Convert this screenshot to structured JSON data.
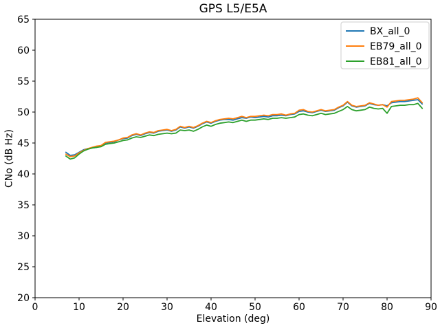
{
  "chart_data": {
    "type": "line",
    "title": "GPS L5/E5A",
    "xlabel": "Elevation (deg)",
    "ylabel": "CNo (dB Hz)",
    "xlim": [
      0,
      90
    ],
    "ylim": [
      20,
      65
    ],
    "xticks": [
      0,
      10,
      20,
      30,
      40,
      50,
      60,
      70,
      80,
      90
    ],
    "yticks": [
      20,
      25,
      30,
      35,
      40,
      45,
      50,
      55,
      60,
      65
    ],
    "grid": false,
    "legend_position": "upper right",
    "x": [
      7,
      8,
      9,
      10,
      11,
      12,
      13,
      14,
      15,
      16,
      17,
      18,
      19,
      20,
      21,
      22,
      23,
      24,
      25,
      26,
      27,
      28,
      29,
      30,
      31,
      32,
      33,
      34,
      35,
      36,
      37,
      38,
      39,
      40,
      41,
      42,
      43,
      44,
      45,
      46,
      47,
      48,
      49,
      50,
      51,
      52,
      53,
      54,
      55,
      56,
      57,
      58,
      59,
      60,
      61,
      62,
      63,
      64,
      65,
      66,
      67,
      68,
      69,
      70,
      71,
      72,
      73,
      74,
      75,
      76,
      77,
      78,
      79,
      80,
      81,
      82,
      83,
      84,
      85,
      86,
      87,
      88
    ],
    "series": [
      {
        "name": "BX_all_0",
        "color": "#1f77b4",
        "values": [
          43.5,
          43.0,
          43.1,
          43.5,
          43.9,
          44.1,
          44.2,
          44.3,
          44.5,
          45.0,
          45.1,
          45.2,
          45.5,
          45.7,
          45.8,
          46.2,
          46.4,
          46.2,
          46.5,
          46.7,
          46.6,
          46.9,
          47.0,
          47.1,
          46.9,
          47.1,
          47.6,
          47.4,
          47.6,
          47.4,
          47.7,
          48.1,
          48.4,
          48.2,
          48.5,
          48.7,
          48.8,
          48.8,
          48.7,
          48.9,
          49.1,
          49.0,
          49.2,
          49.1,
          49.2,
          49.3,
          49.2,
          49.4,
          49.4,
          49.5,
          49.4,
          49.6,
          49.7,
          50.1,
          50.2,
          50.0,
          49.9,
          50.1,
          50.3,
          50.1,
          50.2,
          50.3,
          50.7,
          51.0,
          51.6,
          51.0,
          50.8,
          50.9,
          51.0,
          51.4,
          51.2,
          51.1,
          51.2,
          51.0,
          51.5,
          51.6,
          51.7,
          51.7,
          51.8,
          51.9,
          52.0,
          51.3
        ]
      },
      {
        "name": "EB79_all_0",
        "color": "#ff7f0e",
        "values": [
          43.2,
          42.8,
          42.9,
          43.4,
          43.8,
          44.1,
          44.3,
          44.5,
          44.6,
          45.1,
          45.2,
          45.3,
          45.5,
          45.8,
          45.9,
          46.3,
          46.5,
          46.3,
          46.6,
          46.8,
          46.7,
          47.0,
          47.1,
          47.2,
          47.0,
          47.2,
          47.7,
          47.5,
          47.7,
          47.5,
          47.8,
          48.2,
          48.5,
          48.3,
          48.6,
          48.8,
          48.9,
          49.0,
          48.9,
          49.1,
          49.3,
          49.1,
          49.3,
          49.3,
          49.4,
          49.5,
          49.4,
          49.6,
          49.6,
          49.7,
          49.5,
          49.7,
          49.8,
          50.3,
          50.4,
          50.1,
          50.0,
          50.2,
          50.4,
          50.2,
          50.3,
          50.4,
          50.8,
          51.1,
          51.7,
          51.1,
          50.9,
          51.0,
          51.1,
          51.5,
          51.3,
          51.1,
          51.2,
          50.8,
          51.7,
          51.8,
          51.9,
          51.9,
          52.0,
          52.1,
          52.3,
          51.5
        ]
      },
      {
        "name": "EB81_all_0",
        "color": "#2ca02c",
        "values": [
          42.9,
          42.4,
          42.6,
          43.2,
          43.7,
          44.0,
          44.2,
          44.3,
          44.4,
          44.8,
          44.9,
          45.0,
          45.2,
          45.4,
          45.5,
          45.8,
          46.0,
          45.9,
          46.1,
          46.3,
          46.2,
          46.4,
          46.5,
          46.6,
          46.5,
          46.6,
          47.1,
          47.0,
          47.1,
          46.9,
          47.2,
          47.6,
          47.9,
          47.7,
          48.0,
          48.2,
          48.3,
          48.4,
          48.3,
          48.5,
          48.7,
          48.5,
          48.7,
          48.7,
          48.8,
          48.9,
          48.8,
          49.0,
          49.0,
          49.1,
          49.0,
          49.1,
          49.2,
          49.6,
          49.7,
          49.5,
          49.4,
          49.6,
          49.8,
          49.6,
          49.7,
          49.8,
          50.1,
          50.4,
          50.9,
          50.4,
          50.2,
          50.3,
          50.4,
          50.8,
          50.6,
          50.5,
          50.6,
          49.8,
          50.9,
          51.0,
          51.1,
          51.1,
          51.2,
          51.2,
          51.4,
          50.6
        ]
      }
    ]
  },
  "style": {
    "spine_color": "#000000",
    "tick_color": "#000000",
    "legend_border_color": "#cccccc",
    "background": "#ffffff"
  }
}
